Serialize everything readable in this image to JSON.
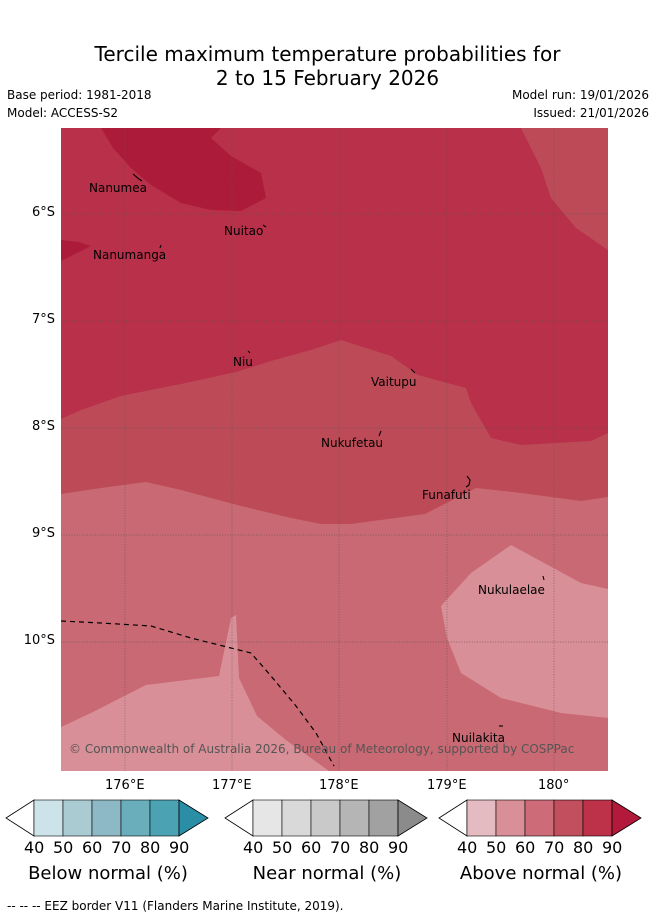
{
  "title": {
    "line1": "Tercile maximum temperature probabilities for",
    "line2": "2 to 15 February 2026"
  },
  "meta": {
    "base_period": "Base period: 1981-2018",
    "model": "Model: ACCESS-S2",
    "model_run": "Model run: 19/01/2026",
    "issued": "Issued: 21/01/2026"
  },
  "map": {
    "lat_labels": [
      "6°S",
      "7°S",
      "8°S",
      "9°S",
      "10°S"
    ],
    "lon_labels": [
      "176°E",
      "177°E",
      "178°E",
      "179°E",
      "180°"
    ],
    "places": [
      "Nanumea",
      "Nuitao",
      "Nanumanga",
      "Niu",
      "Vaitupu",
      "Nukufetau",
      "Funafuti",
      "Nukulaelae",
      "Nuilakita"
    ],
    "copyright": "© Commonwealth of Australia 2026, Bureau of Meteorology, supported by COSPPac",
    "colors": {
      "above_50": "#d88f97",
      "above_60": "#c96973",
      "above_70": "#bd4b57",
      "above_80": "#b8304a",
      "above_90": "#ac1c3a"
    }
  },
  "colorbars": {
    "ticks": [
      "40",
      "50",
      "60",
      "70",
      "80",
      "90"
    ],
    "below": {
      "title": "Below normal (%)",
      "colors": [
        "#ffffff",
        "#cce3ea",
        "#aacbd1",
        "#8db8c5",
        "#6aaebc",
        "#4aa2b3",
        "#2a8fa6"
      ]
    },
    "near": {
      "title": "Near normal (%)",
      "colors": [
        "#ffffff",
        "#e6e6e6",
        "#d9d9d9",
        "#c9c9c9",
        "#b5b5b5",
        "#a1a1a1",
        "#8b8b8b"
      ]
    },
    "above": {
      "title": "Above normal (%)",
      "colors": [
        "#ffffff",
        "#e3bbc1",
        "#d98f98",
        "#cd6c78",
        "#c24f5d",
        "#bd3149",
        "#b2193a"
      ]
    }
  },
  "footer": "-- -- -- EEZ border V11 (Flanders Marine Institute, 2019)."
}
